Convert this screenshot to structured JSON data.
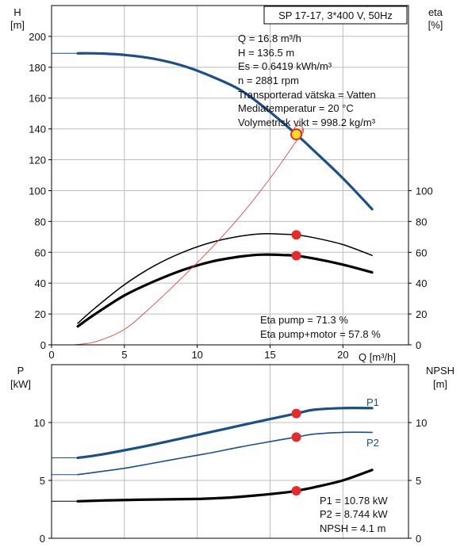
{
  "colors": {
    "blue": "#1a4f8a",
    "black": "#000000",
    "red": "#e8292a",
    "grid": "#bcbcbc",
    "marker_fill": "#f2df1e",
    "thin_red": "#e04a4a"
  },
  "top_chart": {
    "title": "SP 17-17, 3*400 V, 50Hz",
    "left_unit_top": "H",
    "left_unit_bottom": "[m]",
    "right_unit_top": "eta",
    "right_unit_bottom": "[%]",
    "x_axis_label": "Q [m³/h]",
    "info_lines": [
      "Q = 16.8 m³/h",
      "H = 136.5 m",
      "Es = 0.6419 kWh/m³",
      "n = 2881 rpm",
      "Transporterad vätska = Vatten",
      "Mediatemperatur = 20 °C",
      "Volymetrisk vikt = 998.2 kg/m³"
    ],
    "eta_lines": [
      "Eta pump = 71.3 %",
      "Eta pump+motor = 57.8 %"
    ]
  },
  "bottom_chart": {
    "left_unit_top": "P",
    "left_unit_bottom": "[kW]",
    "right_unit_top": "NPSH",
    "right_unit_bottom": "[m]",
    "series_labels": [
      "P1",
      "P2"
    ],
    "value_lines": [
      "P1 = 10.78 kW",
      "P2 = 8.744 kW",
      "NPSH = 4.1 m"
    ]
  },
  "chart_data": [
    {
      "type": "line",
      "title": "SP 17-17, 3*400 V, 50Hz",
      "xlabel": "Q [m³/h]",
      "ylabel": "H [m]",
      "y2label": "eta [%]",
      "xlim": [
        0,
        24.5
      ],
      "ylim": [
        0,
        220
      ],
      "y2lim": [
        0,
        220
      ],
      "x_ticks": [
        0,
        5,
        10,
        15,
        20
      ],
      "y_ticks": [
        0,
        20,
        40,
        60,
        80,
        100,
        120,
        140,
        160,
        180,
        200
      ],
      "y2_ticks": [
        0,
        20,
        40,
        60,
        80,
        100
      ],
      "grid": true,
      "series": [
        {
          "name": "H",
          "axis": "left",
          "style": "thick-blue",
          "dashed_extension": [
            [
              0,
              189
            ],
            [
              1.8,
              189
            ]
          ],
          "x": [
            1.8,
            3,
            5,
            7,
            9,
            11,
            13,
            15,
            16.8,
            18,
            20,
            22
          ],
          "y": [
            189,
            189,
            188,
            185.5,
            181,
            174,
            165,
            151,
            136.5,
            126,
            108,
            88
          ]
        },
        {
          "name": "eta pump",
          "axis": "right",
          "style": "thin-black",
          "x": [
            1.8,
            3,
            5,
            7,
            9,
            11,
            13,
            14.5,
            16,
            16.8,
            18,
            20,
            22
          ],
          "y": [
            14,
            24,
            39,
            51,
            60,
            66.5,
            70.5,
            72,
            71.7,
            71.3,
            69.5,
            65,
            58
          ]
        },
        {
          "name": "eta pump+motor",
          "axis": "right",
          "style": "thick-black",
          "x": [
            1.8,
            3,
            5,
            7,
            9,
            11,
            13,
            14.5,
            16,
            16.8,
            18,
            20,
            22
          ],
          "y": [
            12,
            20,
            32,
            41,
            48.5,
            54,
            57.3,
            58.5,
            58.2,
            57.8,
            56,
            52,
            47
          ]
        },
        {
          "name": "system curve",
          "axis": "left",
          "style": "thin-red",
          "x": [
            1.5,
            3,
            5,
            7,
            9,
            11,
            13,
            15,
            17,
            17.2
          ],
          "y": [
            0,
            2,
            10,
            26,
            44,
            63,
            84,
            108,
            135,
            140
          ]
        }
      ],
      "markers": [
        {
          "x": 16.8,
          "y": 136.5,
          "axis": "left",
          "style": "duty-point"
        },
        {
          "x": 16.8,
          "y": 71.3,
          "axis": "right",
          "style": "red"
        },
        {
          "x": 16.8,
          "y": 57.8,
          "axis": "right",
          "style": "red"
        }
      ]
    },
    {
      "type": "line",
      "ylabel": "P [kW]",
      "y2label": "NPSH [m]",
      "xlim": [
        0,
        24.5
      ],
      "ylim": [
        0,
        15
      ],
      "y2lim": [
        0,
        15
      ],
      "y_ticks": [
        0,
        5,
        10
      ],
      "y2_ticks": [
        0,
        5,
        10
      ],
      "grid": true,
      "series": [
        {
          "name": "P1",
          "axis": "left",
          "style": "thick-blue",
          "dashed_extension": [
            [
              0,
              6.95
            ],
            [
              1.8,
              6.95
            ]
          ],
          "x": [
            1.8,
            3,
            5,
            7,
            9,
            11,
            13,
            15,
            16.8,
            18,
            20,
            22
          ],
          "y": [
            6.95,
            7.15,
            7.6,
            8.1,
            8.65,
            9.2,
            9.75,
            10.3,
            10.78,
            11.1,
            11.25,
            11.25
          ]
        },
        {
          "name": "P2",
          "axis": "left",
          "style": "thin-blue",
          "dashed_extension": [
            [
              0,
              5.5
            ],
            [
              1.8,
              5.5
            ]
          ],
          "x": [
            1.8,
            3,
            5,
            7,
            9,
            11,
            13,
            15,
            16.8,
            18,
            20,
            22
          ],
          "y": [
            5.5,
            5.7,
            6.05,
            6.5,
            6.95,
            7.4,
            7.9,
            8.35,
            8.744,
            9.0,
            9.15,
            9.15
          ]
        },
        {
          "name": "NPSH",
          "axis": "right",
          "style": "thick-black",
          "dashed_extension": [
            [
              0,
              3.2
            ],
            [
              1.8,
              3.2
            ]
          ],
          "x": [
            1.8,
            4,
            7,
            10,
            12,
            14,
            16,
            16.8,
            18,
            20,
            22
          ],
          "y": [
            3.2,
            3.28,
            3.35,
            3.4,
            3.5,
            3.7,
            3.95,
            4.1,
            4.4,
            5.0,
            5.9
          ]
        }
      ],
      "markers": [
        {
          "x": 16.8,
          "y": 10.78,
          "axis": "left",
          "style": "red"
        },
        {
          "x": 16.8,
          "y": 8.744,
          "axis": "left",
          "style": "red"
        },
        {
          "x": 16.8,
          "y": 4.1,
          "axis": "right",
          "style": "red"
        }
      ]
    }
  ]
}
